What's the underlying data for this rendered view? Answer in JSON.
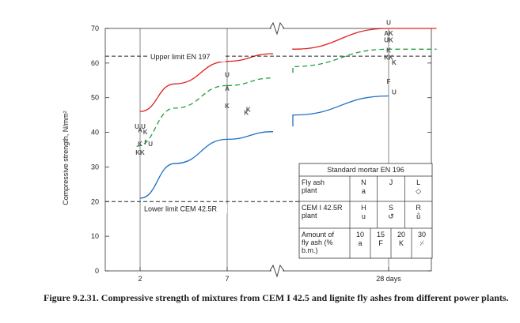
{
  "chart_data": {
    "type": "line",
    "ylabel": "Compressive strength, N/mm²",
    "ylim": [
      0,
      70
    ],
    "y_ticks": [
      0,
      10,
      20,
      30,
      40,
      50,
      60,
      70
    ],
    "x_ticks": [
      {
        "label": "2",
        "x": 2
      },
      {
        "label": "7",
        "x": 7
      },
      {
        "label": "28 days",
        "x": 28
      }
    ],
    "series": [
      {
        "name": "",
        "color": "#e02020",
        "dash": "solid",
        "x": [
          2,
          4,
          7,
          14,
          28,
          35
        ],
        "y": [
          46,
          54,
          60.5,
          64,
          70,
          70
        ]
      },
      {
        "name": "",
        "color": "#1fa03a",
        "dash": "dashed",
        "x": [
          1.8,
          4,
          7,
          14,
          28,
          35
        ],
        "y": [
          36,
          47,
          53.5,
          59,
          64,
          64
        ]
      },
      {
        "name": "",
        "color": "#1a6fc4",
        "dash": "solid",
        "x": [
          2,
          4,
          7,
          14,
          28
        ],
        "y": [
          21,
          31,
          38,
          45,
          50.5
        ]
      }
    ],
    "reference_lines": [
      {
        "label": "Upper limit EN 197",
        "y": 62
      },
      {
        "label": "Lower limit CEM 42.5R",
        "y": 20
      }
    ],
    "markers": [
      {
        "x": 2,
        "y": 41,
        "text": "U U"
      },
      {
        "x": 2,
        "y": 40,
        "text": "A"
      },
      {
        "x": 2.3,
        "y": 39.5,
        "text": "K"
      },
      {
        "x": 2,
        "y": 36,
        "text": "K"
      },
      {
        "x": 2.3,
        "y": 36.5,
        "text": "f"
      },
      {
        "x": 2.6,
        "y": 36,
        "text": "U"
      },
      {
        "x": 2,
        "y": 33.5,
        "text": "KK"
      },
      {
        "x": 7,
        "y": 56,
        "text": "U"
      },
      {
        "x": 7,
        "y": 52,
        "text": "A"
      },
      {
        "x": 7,
        "y": 47,
        "text": "K"
      },
      {
        "x": 7.2,
        "y": 45,
        "text": "K"
      },
      {
        "x": 7.5,
        "y": 46,
        "text": "K"
      },
      {
        "x": 28,
        "y": 71,
        "text": "U"
      },
      {
        "x": 28,
        "y": 68,
        "text": "AK"
      },
      {
        "x": 28,
        "y": 66,
        "text": "UK"
      },
      {
        "x": 28,
        "y": 63,
        "text": "K"
      },
      {
        "x": 28,
        "y": 61,
        "text": "KK"
      },
      {
        "x": 28.8,
        "y": 59.5,
        "text": "K"
      },
      {
        "x": 28,
        "y": 54,
        "text": "F"
      },
      {
        "x": 28.8,
        "y": 51,
        "text": "U"
      }
    ]
  },
  "legend": {
    "title": "Standard mortar EN 196",
    "rows": [
      {
        "label": "Fly ash plant",
        "cells": [
          "N a",
          "J",
          "L ◇"
        ]
      },
      {
        "label": "CEM I 42.5R plant",
        "cells": [
          "H u",
          "S ↺",
          "R ů"
        ]
      },
      {
        "label": "Amount of fly ash (% b.m.)",
        "cells": [
          "10 a",
          "15 F",
          "20 K",
          "30 ⸓"
        ]
      }
    ]
  },
  "caption": "Figure 9.2.31. Compressive strength of mixtures from CEM I 42.5 and lignite fly ashes from different power plants."
}
